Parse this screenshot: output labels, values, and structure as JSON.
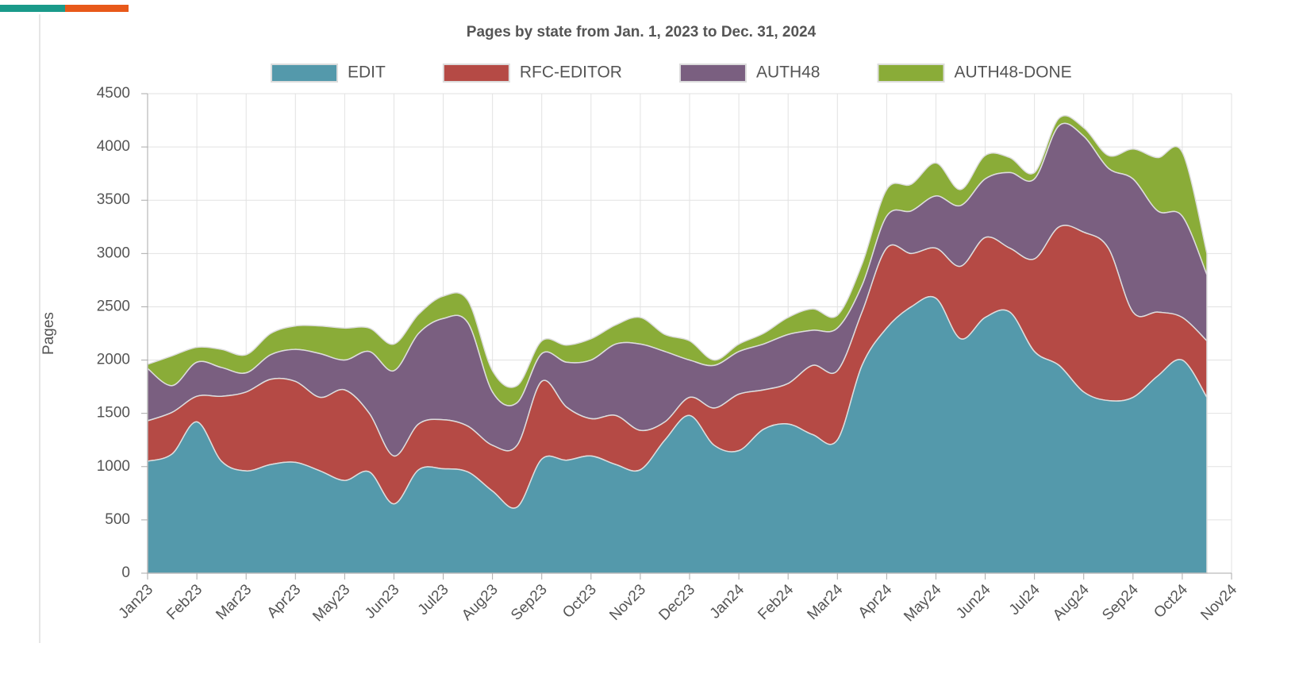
{
  "chart_data": {
    "type": "stacked_area",
    "title": "Pages by state from Jan. 1, 2023 to Dec. 31, 2024",
    "y_label": "Pages",
    "x": [
      0,
      0.5,
      1,
      1.5,
      2,
      2.5,
      3,
      3.5,
      4,
      4.5,
      5,
      5.5,
      6,
      6.5,
      7,
      7.5,
      8,
      8.5,
      9,
      9.5,
      10,
      10.5,
      11,
      11.5,
      12,
      12.5,
      13,
      13.5,
      14,
      14.5,
      15,
      15.5,
      16,
      16.5,
      17,
      17.5,
      18,
      18.5,
      19,
      19.5,
      20,
      20.5,
      21,
      21.5
    ],
    "series": [
      {
        "name": "EDIT",
        "color": "#5499ab",
        "values": [
          1050,
          1120,
          1420,
          1050,
          960,
          1020,
          1040,
          960,
          870,
          950,
          650,
          970,
          980,
          950,
          770,
          620,
          1070,
          1060,
          1100,
          1020,
          970,
          1250,
          1480,
          1200,
          1150,
          1350,
          1400,
          1300,
          1250,
          1950,
          2300,
          2500,
          2580,
          2200,
          2400,
          2450,
          2080,
          1950,
          1700,
          1620,
          1650,
          1850,
          2000,
          1650
        ]
      },
      {
        "name": "RFC-EDITOR",
        "color": "#b54a45",
        "values": [
          380,
          390,
          240,
          610,
          740,
          800,
          760,
          690,
          850,
          550,
          450,
          430,
          460,
          430,
          430,
          580,
          730,
          500,
          350,
          460,
          370,
          170,
          170,
          350,
          530,
          370,
          380,
          650,
          650,
          500,
          750,
          500,
          470,
          680,
          750,
          600,
          870,
          1300,
          1500,
          1430,
          800,
          600,
          400,
          530
        ]
      },
      {
        "name": "AUTH48",
        "color": "#7a5f80",
        "values": [
          490,
          250,
          320,
          270,
          180,
          230,
          300,
          410,
          280,
          580,
          800,
          850,
          950,
          970,
          500,
          400,
          260,
          420,
          550,
          670,
          810,
          660,
          350,
          400,
          400,
          430,
          460,
          330,
          400,
          250,
          300,
          400,
          490,
          570,
          550,
          710,
          750,
          950,
          900,
          750,
          1250,
          950,
          950,
          620
        ]
      },
      {
        "name": "AUTH48-DONE",
        "color": "#8aac38",
        "values": [
          40,
          280,
          140,
          170,
          170,
          200,
          220,
          260,
          300,
          220,
          250,
          180,
          210,
          210,
          200,
          160,
          120,
          160,
          200,
          180,
          250,
          160,
          180,
          50,
          70,
          100,
          160,
          200,
          120,
          200,
          250,
          250,
          310,
          150,
          220,
          140,
          60,
          70,
          80,
          120,
          280,
          500,
          600,
          200
        ]
      }
    ],
    "xlim": [
      0,
      22
    ],
    "xticks": [
      {
        "value": 0,
        "label": "Jan23"
      },
      {
        "value": 1,
        "label": "Feb23"
      },
      {
        "value": 2,
        "label": "Mar23"
      },
      {
        "value": 3,
        "label": "Apr23"
      },
      {
        "value": 4,
        "label": "May23"
      },
      {
        "value": 5,
        "label": "Jun23"
      },
      {
        "value": 6,
        "label": "Jul23"
      },
      {
        "value": 7,
        "label": "Aug23"
      },
      {
        "value": 8,
        "label": "Sep23"
      },
      {
        "value": 9,
        "label": "Oct23"
      },
      {
        "value": 10,
        "label": "Nov23"
      },
      {
        "value": 11,
        "label": "Dec23"
      },
      {
        "value": 12,
        "label": "Jan24"
      },
      {
        "value": 13,
        "label": "Feb24"
      },
      {
        "value": 14,
        "label": "Mar24"
      },
      {
        "value": 15,
        "label": "Apr24"
      },
      {
        "value": 16,
        "label": "May24"
      },
      {
        "value": 17,
        "label": "Jun24"
      },
      {
        "value": 18,
        "label": "Jul24"
      },
      {
        "value": 19,
        "label": "Aug24"
      },
      {
        "value": 20,
        "label": "Sep24"
      },
      {
        "value": 21,
        "label": "Oct24"
      },
      {
        "value": 22,
        "label": "Nov24"
      }
    ],
    "ylim": [
      0,
      4500
    ],
    "yticks": [
      0,
      500,
      1000,
      1500,
      2000,
      2500,
      3000,
      3500,
      4000,
      4500
    ],
    "grid": true,
    "legend": "top"
  }
}
